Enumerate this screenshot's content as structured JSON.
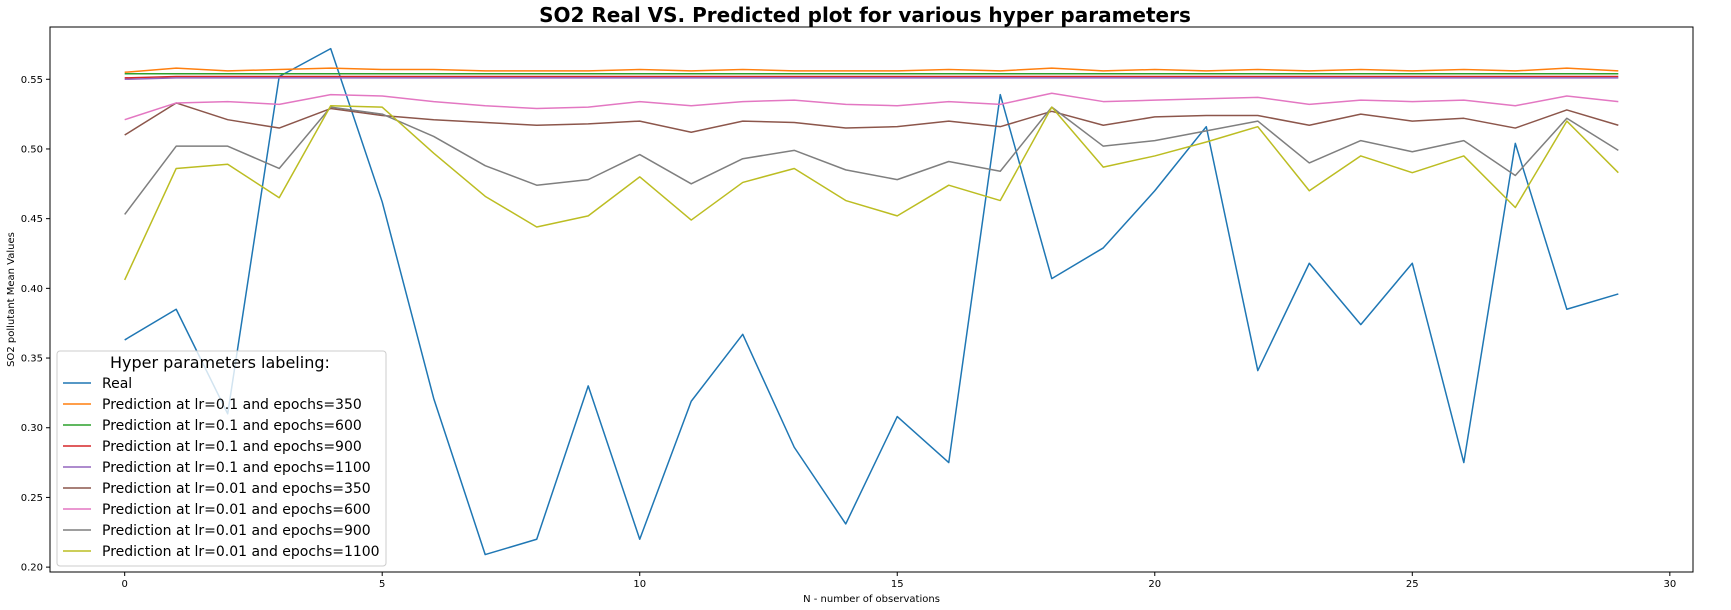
{
  "chart_data": {
    "type": "line",
    "title": "SO2 Real VS. Predicted plot for various hyper parameters",
    "xlabel": "N - number of observations",
    "ylabel": "SO2 pollutant Mean Values",
    "xlim": [
      -1.45,
      30.45
    ],
    "ylim": [
      0.1965,
      0.5875
    ],
    "xticks": [
      0,
      5,
      10,
      15,
      20,
      25,
      30
    ],
    "xtick_labels": [
      "0",
      "5",
      "10",
      "15",
      "20",
      "25",
      "30"
    ],
    "yticks": [
      0.2,
      0.25,
      0.3,
      0.35,
      0.4,
      0.45,
      0.5,
      0.55
    ],
    "ytick_labels": [
      "0.20",
      "0.25",
      "0.30",
      "0.35",
      "0.40",
      "0.45",
      "0.50",
      "0.55"
    ],
    "grid": false,
    "legend": {
      "title": "Hyper parameters labeling:",
      "position": "lower-left"
    },
    "x": [
      0,
      1,
      2,
      3,
      4,
      5,
      6,
      7,
      8,
      9,
      10,
      11,
      12,
      13,
      14,
      15,
      16,
      17,
      18,
      19,
      20,
      21,
      22,
      23,
      24,
      25,
      26,
      27,
      28,
      29
    ],
    "series": [
      {
        "name": "Real",
        "color": "#1f77b4",
        "values": [
          0.363,
          0.385,
          0.31,
          0.552,
          0.572,
          0.462,
          0.321,
          0.209,
          0.22,
          0.33,
          0.22,
          0.319,
          0.367,
          0.286,
          0.231,
          0.308,
          0.275,
          0.539,
          0.407,
          0.429,
          0.47,
          0.516,
          0.341,
          0.418,
          0.374,
          0.418,
          0.275,
          0.504,
          0.385,
          0.396
        ]
      },
      {
        "name": "Prediction at lr=0.1 and epochs=350",
        "color": "#ff7f0e",
        "values": [
          0.555,
          0.558,
          0.556,
          0.557,
          0.558,
          0.557,
          0.557,
          0.556,
          0.556,
          0.556,
          0.557,
          0.556,
          0.557,
          0.556,
          0.556,
          0.556,
          0.557,
          0.556,
          0.558,
          0.556,
          0.557,
          0.556,
          0.557,
          0.556,
          0.557,
          0.556,
          0.557,
          0.556,
          0.558,
          0.556
        ]
      },
      {
        "name": "Prediction at lr=0.1 and epochs=600",
        "color": "#2ca02c",
        "values": [
          0.554,
          0.554,
          0.554,
          0.554,
          0.554,
          0.554,
          0.554,
          0.554,
          0.554,
          0.554,
          0.554,
          0.554,
          0.554,
          0.554,
          0.554,
          0.554,
          0.554,
          0.554,
          0.554,
          0.554,
          0.554,
          0.554,
          0.554,
          0.554,
          0.554,
          0.554,
          0.554,
          0.554,
          0.554,
          0.554
        ]
      },
      {
        "name": "Prediction at lr=0.1 and epochs=900",
        "color": "#d62728",
        "values": [
          0.551,
          0.552,
          0.552,
          0.552,
          0.552,
          0.552,
          0.552,
          0.552,
          0.552,
          0.552,
          0.552,
          0.552,
          0.552,
          0.552,
          0.552,
          0.552,
          0.552,
          0.552,
          0.552,
          0.552,
          0.552,
          0.552,
          0.552,
          0.552,
          0.552,
          0.552,
          0.552,
          0.552,
          0.552,
          0.552
        ]
      },
      {
        "name": "Prediction at lr=0.1 and epochs=1100",
        "color": "#9467bd",
        "values": [
          0.55,
          0.551,
          0.551,
          0.551,
          0.551,
          0.551,
          0.551,
          0.551,
          0.551,
          0.551,
          0.551,
          0.551,
          0.551,
          0.551,
          0.551,
          0.551,
          0.551,
          0.551,
          0.551,
          0.551,
          0.551,
          0.551,
          0.551,
          0.551,
          0.551,
          0.551,
          0.551,
          0.551,
          0.551,
          0.551
        ]
      },
      {
        "name": "Prediction at lr=0.01 and epochs=350",
        "color": "#8c564b",
        "values": [
          0.51,
          0.533,
          0.521,
          0.515,
          0.529,
          0.524,
          0.521,
          0.519,
          0.517,
          0.518,
          0.52,
          0.512,
          0.52,
          0.519,
          0.515,
          0.516,
          0.52,
          0.516,
          0.527,
          0.517,
          0.523,
          0.524,
          0.524,
          0.517,
          0.525,
          0.52,
          0.522,
          0.515,
          0.528,
          0.517
        ]
      },
      {
        "name": "Prediction at lr=0.01 and epochs=600",
        "color": "#e377c2",
        "values": [
          0.521,
          0.533,
          0.534,
          0.532,
          0.539,
          0.538,
          0.534,
          0.531,
          0.529,
          0.53,
          0.534,
          0.531,
          0.534,
          0.535,
          0.532,
          0.531,
          0.534,
          0.532,
          0.54,
          0.534,
          0.535,
          0.536,
          0.537,
          0.532,
          0.535,
          0.534,
          0.535,
          0.531,
          0.538,
          0.534
        ]
      },
      {
        "name": "Prediction at lr=0.01 and epochs=900",
        "color": "#7f7f7f",
        "values": [
          0.453,
          0.502,
          0.502,
          0.486,
          0.53,
          0.525,
          0.509,
          0.488,
          0.474,
          0.478,
          0.496,
          0.475,
          0.493,
          0.499,
          0.485,
          0.478,
          0.491,
          0.484,
          0.53,
          0.502,
          0.506,
          0.513,
          0.52,
          0.49,
          0.506,
          0.498,
          0.506,
          0.481,
          0.522,
          0.499
        ]
      },
      {
        "name": "Prediction at lr=0.01 and epochs=1100",
        "color": "#bcbd22",
        "values": [
          0.406,
          0.486,
          0.489,
          0.465,
          0.531,
          0.53,
          0.497,
          0.466,
          0.444,
          0.452,
          0.48,
          0.449,
          0.476,
          0.486,
          0.463,
          0.452,
          0.474,
          0.463,
          0.53,
          0.487,
          0.495,
          0.505,
          0.516,
          0.47,
          0.495,
          0.483,
          0.495,
          0.458,
          0.52,
          0.483
        ]
      }
    ]
  }
}
